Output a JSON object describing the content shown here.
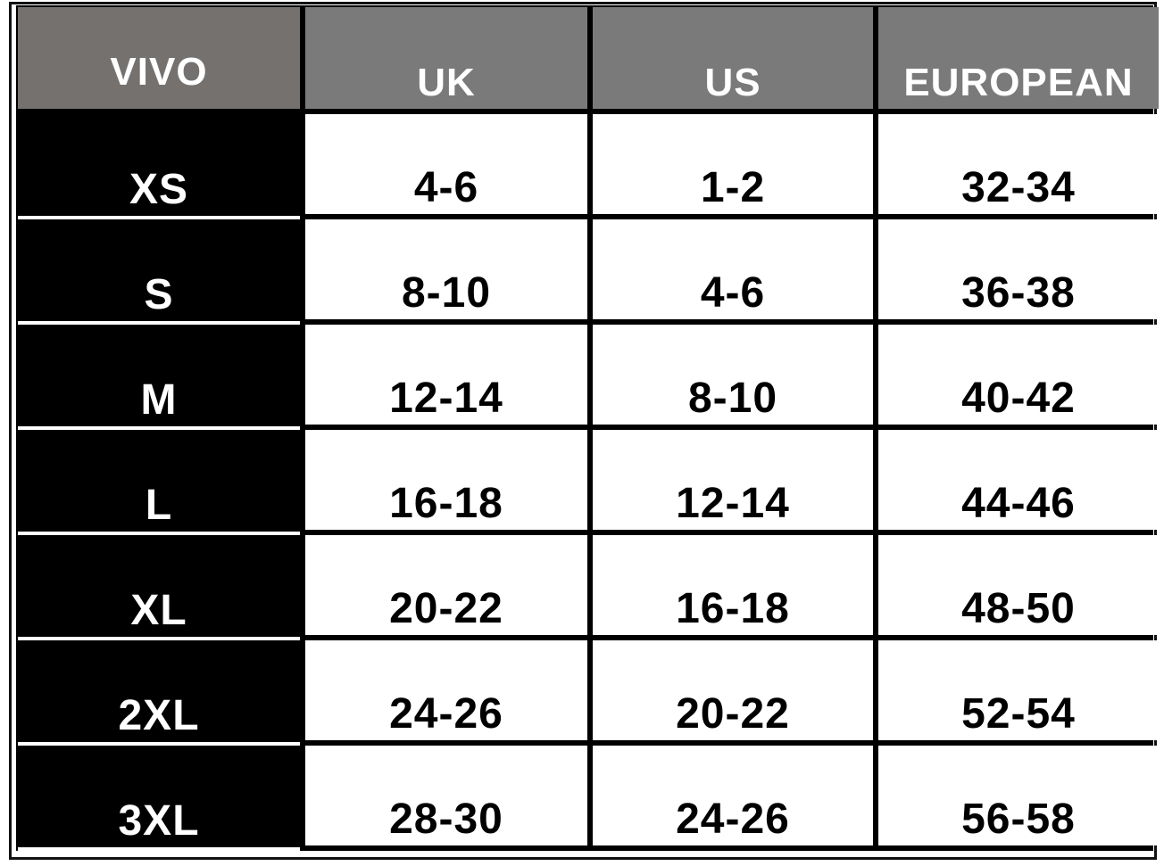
{
  "headers": [
    "VIVO",
    "UK",
    "US",
    "EUROPEAN"
  ],
  "rows": [
    {
      "size": "XS",
      "uk": "4-6",
      "us": "1-2",
      "eu": "32-34"
    },
    {
      "size": "S",
      "uk": "8-10",
      "us": "4-6",
      "eu": "36-38"
    },
    {
      "size": "M",
      "uk": "12-14",
      "us": "8-10",
      "eu": "40-42"
    },
    {
      "size": "L",
      "uk": "16-18",
      "us": "12-14",
      "eu": "44-46"
    },
    {
      "size": "XL",
      "uk": "20-22",
      "us": "16-18",
      "eu": "48-50"
    },
    {
      "size": "2XL",
      "uk": "24-26",
      "us": "20-22",
      "eu": "52-54"
    },
    {
      "size": "3XL",
      "uk": "28-30",
      "us": "24-26",
      "eu": "56-58"
    }
  ],
  "colors": {
    "header_first": "#75716f",
    "header": "#7a7a7a",
    "size_column": "#000000",
    "cell": "#ffffff"
  }
}
